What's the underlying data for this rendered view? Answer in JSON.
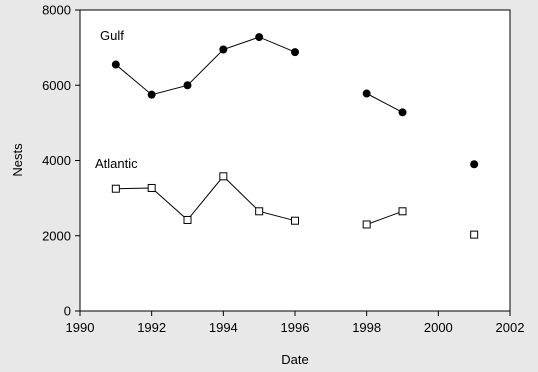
{
  "chart_data": {
    "type": "line",
    "xlabel": "Date",
    "ylabel": "Nests",
    "xlim": [
      1990,
      2002
    ],
    "ylim": [
      0,
      8000
    ],
    "xticks": [
      1990,
      1992,
      1994,
      1996,
      1998,
      2000,
      2002
    ],
    "yticks": [
      0,
      2000,
      4000,
      6000,
      8000
    ],
    "grid": false,
    "series": [
      {
        "name": "Gulf",
        "marker": "filled-circle",
        "color": "#000000",
        "segments": [
          [
            [
              1991,
              6550
            ],
            [
              1992,
              5750
            ],
            [
              1993,
              6000
            ],
            [
              1994,
              6950
            ],
            [
              1995,
              7280
            ],
            [
              1996,
              6880
            ]
          ],
          [
            [
              1998,
              5780
            ],
            [
              1999,
              5280
            ]
          ],
          [
            [
              2001,
              3900
            ]
          ]
        ]
      },
      {
        "name": "Atlantic",
        "marker": "open-square",
        "color": "#000000",
        "segments": [
          [
            [
              1991,
              3250
            ],
            [
              1992,
              3270
            ],
            [
              1993,
              2420
            ],
            [
              1994,
              3580
            ],
            [
              1995,
              2650
            ],
            [
              1996,
              2400
            ]
          ],
          [
            [
              1998,
              2300
            ],
            [
              1999,
              2650
            ]
          ],
          [
            [
              2001,
              2030
            ]
          ]
        ]
      }
    ]
  }
}
